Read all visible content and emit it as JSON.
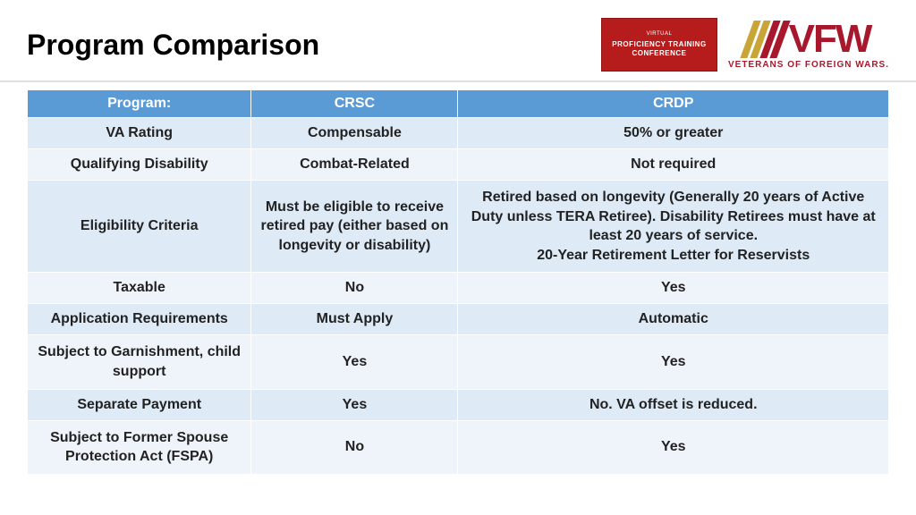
{
  "header": {
    "title": "Program Comparison",
    "badge_line1": "VIRTUAL",
    "badge_line2": "PROFICIENCY TRAINING CONFERENCE",
    "vfw_text": "VFW",
    "vfw_sub": "VETERANS OF FOREIGN WARS."
  },
  "table": {
    "header_bg": "#5b9bd5",
    "header_fg": "#ffffff",
    "row_odd_bg": "#deeaf6",
    "row_even_bg": "#eff4fa",
    "columns": [
      "Program:",
      "CRSC",
      "CRDP"
    ],
    "rows": [
      {
        "label": "VA Rating",
        "crsc": "Compensable",
        "crdp": "50% or greater"
      },
      {
        "label": "Qualifying Disability",
        "crsc": "Combat-Related",
        "crdp": "Not required"
      },
      {
        "label": "Eligibility Criteria",
        "crsc": "Must be eligible to receive retired pay (either based on longevity or disability)",
        "crdp": "Retired based on longevity (Generally 20 years of Active Duty unless TERA Retiree). Disability Retirees must have at least 20 years of service.\n20-Year Retirement Letter for Reservists"
      },
      {
        "label": "Taxable",
        "crsc": "No",
        "crdp": "Yes"
      },
      {
        "label": "Application Requirements",
        "crsc": "Must Apply",
        "crdp": "Automatic"
      },
      {
        "label": "Subject to Garnishment, child support",
        "crsc": "Yes",
        "crdp": "Yes"
      },
      {
        "label": "Separate Payment",
        "crsc": "Yes",
        "crdp": "No.  VA offset is reduced."
      },
      {
        "label": "Subject to Former Spouse Protection Act (FSPA)",
        "crsc": "No",
        "crdp": "Yes"
      }
    ]
  },
  "colors": {
    "vfw_red": "#a8182d",
    "vfw_gold": "#c9a538",
    "badge_bg": "#b71c1c"
  }
}
